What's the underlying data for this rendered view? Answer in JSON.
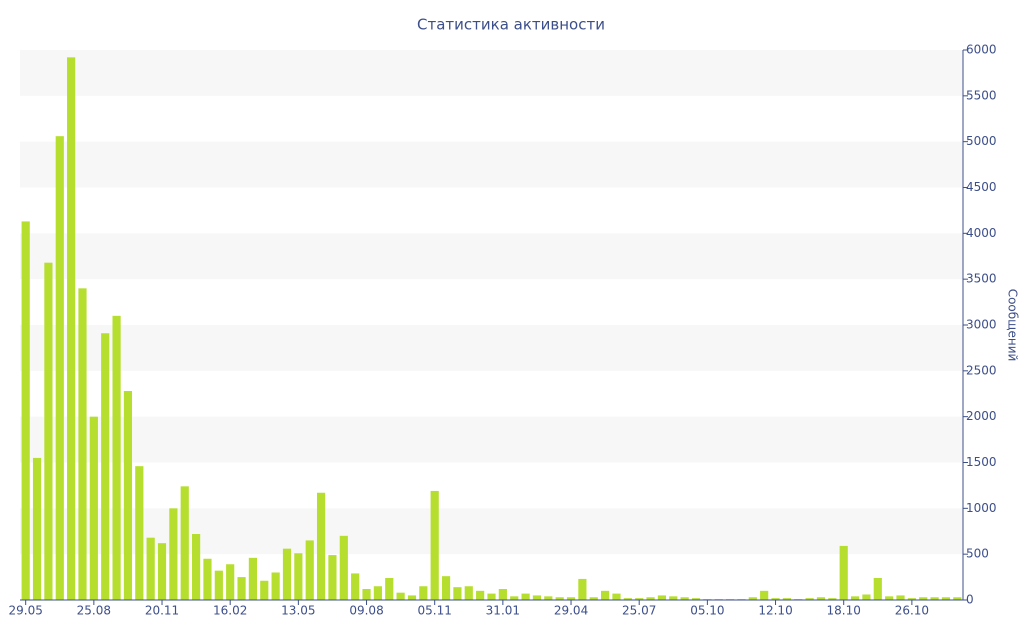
{
  "chart_data": {
    "type": "bar",
    "title": "Статистика активности",
    "y_axis_label": "Сообщений",
    "categories": [
      "29.05",
      null,
      null,
      null,
      null,
      null,
      "25.08",
      null,
      null,
      null,
      null,
      null,
      "20.11",
      null,
      null,
      null,
      null,
      null,
      "16.02",
      null,
      null,
      null,
      null,
      null,
      "13.05",
      null,
      null,
      null,
      null,
      null,
      "09.08",
      null,
      null,
      null,
      null,
      null,
      "05.11",
      null,
      null,
      null,
      null,
      null,
      "31.01",
      null,
      null,
      null,
      null,
      null,
      "29.04",
      null,
      null,
      null,
      null,
      null,
      "25.07",
      null,
      null,
      null,
      null,
      null,
      "05.10",
      null,
      null,
      null,
      null,
      null,
      "12.10",
      null,
      null,
      null,
      null,
      null,
      "18.10",
      null,
      null,
      null,
      null,
      null,
      "26.10",
      null,
      null,
      null,
      null
    ],
    "values": [
      4130,
      1550,
      3680,
      5060,
      5920,
      3400,
      2000,
      2910,
      3100,
      2280,
      1460,
      680,
      620,
      1000,
      1240,
      720,
      450,
      320,
      390,
      250,
      460,
      210,
      300,
      560,
      510,
      650,
      1170,
      490,
      700,
      290,
      120,
      150,
      240,
      80,
      50,
      150,
      1190,
      260,
      140,
      150,
      100,
      70,
      120,
      40,
      70,
      50,
      40,
      30,
      30,
      230,
      30,
      100,
      70,
      20,
      20,
      30,
      50,
      40,
      30,
      20,
      10,
      10,
      10,
      10,
      30,
      100,
      20,
      20,
      10,
      20,
      30,
      20,
      590,
      40,
      60,
      240,
      40,
      50,
      20,
      30,
      30,
      30,
      30
    ],
    "color": "#b6de2f",
    "ylim": [
      0,
      6000
    ],
    "yticks": [
      0,
      500,
      1000,
      1500,
      2000,
      2500,
      3000,
      3500,
      4000,
      4500,
      5000,
      5500,
      6000
    ],
    "grid": true,
    "y_axis_side": "right"
  }
}
